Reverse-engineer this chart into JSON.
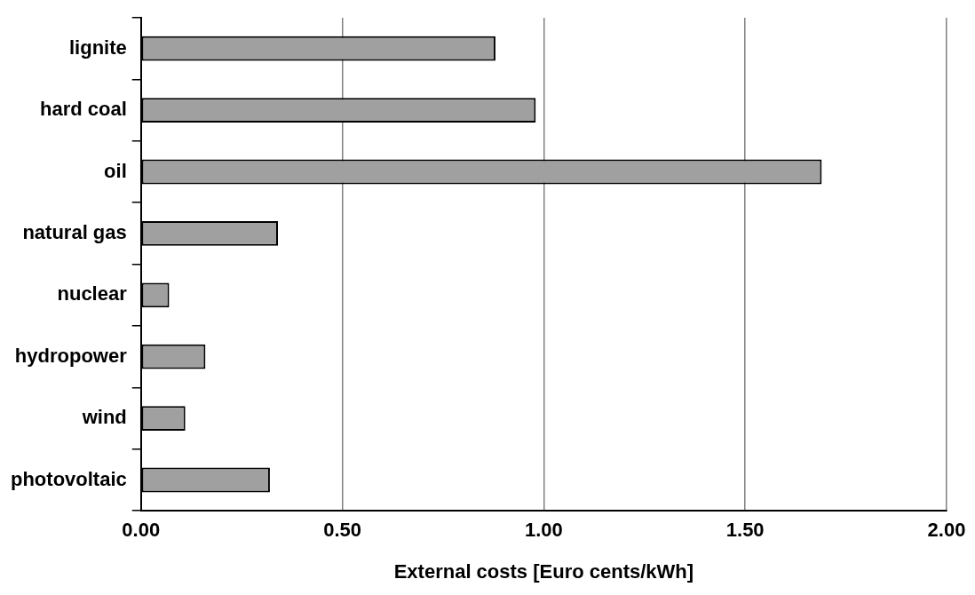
{
  "chart_data": {
    "type": "bar",
    "orientation": "horizontal",
    "xlabel": "External costs [Euro cents/kWh]",
    "categories": [
      "lignite",
      "hard coal",
      "oil",
      "natural gas",
      "nuclear",
      "hydropower",
      "wind",
      "photovoltaic"
    ],
    "values": [
      0.88,
      0.98,
      1.69,
      0.34,
      0.07,
      0.16,
      0.11,
      0.32
    ],
    "color": "#a0a0a0",
    "xlim": [
      0,
      2
    ],
    "xticks": [
      {
        "value": 0,
        "label": "0.00"
      },
      {
        "value": 0.5,
        "label": "0.50"
      },
      {
        "value": 1,
        "label": "1.00"
      },
      {
        "value": 1.5,
        "label": "1.50"
      },
      {
        "value": 2,
        "label": "2.00"
      }
    ],
    "grid": "x",
    "legend": false
  }
}
